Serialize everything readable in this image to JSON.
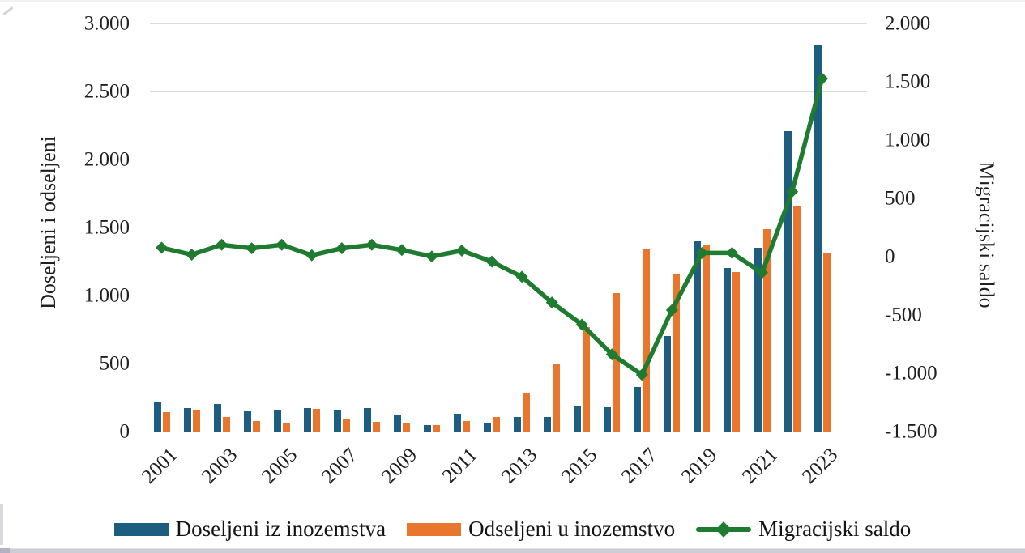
{
  "chart_data": {
    "type": "bar",
    "subtype": "bar-line-combo",
    "title": "",
    "categories": [
      2001,
      2002,
      2003,
      2004,
      2005,
      2006,
      2007,
      2008,
      2009,
      2010,
      2011,
      2012,
      2013,
      2014,
      2015,
      2016,
      2017,
      2018,
      2019,
      2020,
      2021,
      2022,
      2023
    ],
    "series": [
      {
        "name": "Doseljeni iz inozemstva",
        "type": "bar",
        "axis": "left",
        "color": "#1d5e80",
        "values": [
          215,
          170,
          205,
          150,
          160,
          175,
          160,
          170,
          120,
          50,
          130,
          65,
          105,
          105,
          185,
          180,
          325,
          700,
          1400,
          1200,
          1350,
          2210,
          2840
        ]
      },
      {
        "name": "Odseljeni u inozemstvo",
        "type": "bar",
        "axis": "left",
        "color": "#e8762d",
        "values": [
          140,
          155,
          105,
          80,
          60,
          165,
          90,
          70,
          65,
          50,
          80,
          110,
          280,
          500,
          770,
          1020,
          1340,
          1160,
          1370,
          1170,
          1490,
          1655,
          1315
        ]
      },
      {
        "name": "Migracijski saldo",
        "type": "line",
        "axis": "right",
        "color": "#1e7b30",
        "marker": "diamond",
        "values": [
          75,
          15,
          100,
          70,
          100,
          10,
          70,
          100,
          55,
          0,
          50,
          -45,
          -175,
          -395,
          -585,
          -840,
          -1015,
          -460,
          30,
          30,
          -140,
          555,
          1525
        ]
      }
    ],
    "left_axis": {
      "title": "Doseljeni i odseljeni",
      "min": 0,
      "max": 3000,
      "step": 500,
      "tick_labels_top_to_bottom": [
        "3.000",
        "2.500",
        "2.000",
        "1.500",
        "1.000",
        "500",
        "0"
      ]
    },
    "right_axis": {
      "title": "Migracijski saldo",
      "min": -1500,
      "max": 2000,
      "step": 500,
      "tick_labels_top_to_bottom": [
        "2.000",
        "1.500",
        "1.000",
        "500",
        "0",
        "-500",
        "-1.000",
        "-1.500"
      ]
    },
    "x_tick_labels": [
      "2001",
      "2003",
      "2005",
      "2007",
      "2009",
      "2011",
      "2013",
      "2015",
      "2017",
      "2019",
      "2021",
      "2023"
    ],
    "grid": true,
    "gridline_color": "#d9d9d9",
    "legend_position": "bottom",
    "legend": [
      "Doseljeni iz inozemstva",
      "Odseljeni u inozemstvo",
      "Migracijski saldo"
    ]
  }
}
